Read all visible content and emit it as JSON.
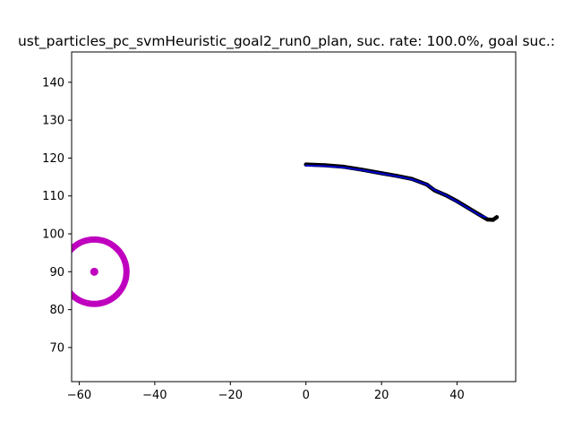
{
  "chart_data": {
    "type": "line",
    "title": "ust_particles_pc_svmHeuristic_goal2_run0_plan, suc. rate: 100.0%, goal suc.:",
    "xlabel": "",
    "ylabel": "",
    "xlim": [
      -62,
      55.5
    ],
    "ylim": [
      61,
      148
    ],
    "xticks": [
      -60,
      -40,
      -20,
      0,
      20,
      40
    ],
    "yticks": [
      70,
      80,
      90,
      100,
      110,
      120,
      130,
      140
    ],
    "xtick_labels": [
      "−60",
      "−40",
      "−20",
      "0",
      "20",
      "40"
    ],
    "ytick_labels": [
      "70",
      "80",
      "90",
      "100",
      "110",
      "120",
      "130",
      "140"
    ],
    "grid": false,
    "legend": "none",
    "colors": {
      "actual": "#000000",
      "planned": "#0000cc",
      "goal": "#bf00bf"
    },
    "series": [
      {
        "role": "actual",
        "x": [
          0,
          5,
          10,
          15,
          20,
          24,
          28,
          32,
          34,
          37,
          40,
          43,
          46,
          48,
          49.5,
          50.5
        ],
        "y": [
          118.3,
          118.1,
          117.7,
          116.9,
          116.0,
          115.3,
          114.5,
          113.0,
          111.5,
          110.2,
          108.6,
          106.8,
          105.0,
          103.8,
          103.7,
          104.4
        ]
      },
      {
        "role": "planned",
        "x": [
          0,
          5,
          10,
          15,
          20,
          24,
          28,
          32,
          34,
          37,
          40,
          43,
          46,
          47.5
        ],
        "y": [
          118.0,
          117.9,
          117.5,
          116.8,
          115.9,
          115.2,
          114.4,
          113.0,
          111.6,
          110.2,
          108.5,
          106.7,
          104.9,
          104.4
        ]
      }
    ],
    "goal": {
      "center": [
        -56,
        90
      ],
      "radius": 8.5
    }
  }
}
